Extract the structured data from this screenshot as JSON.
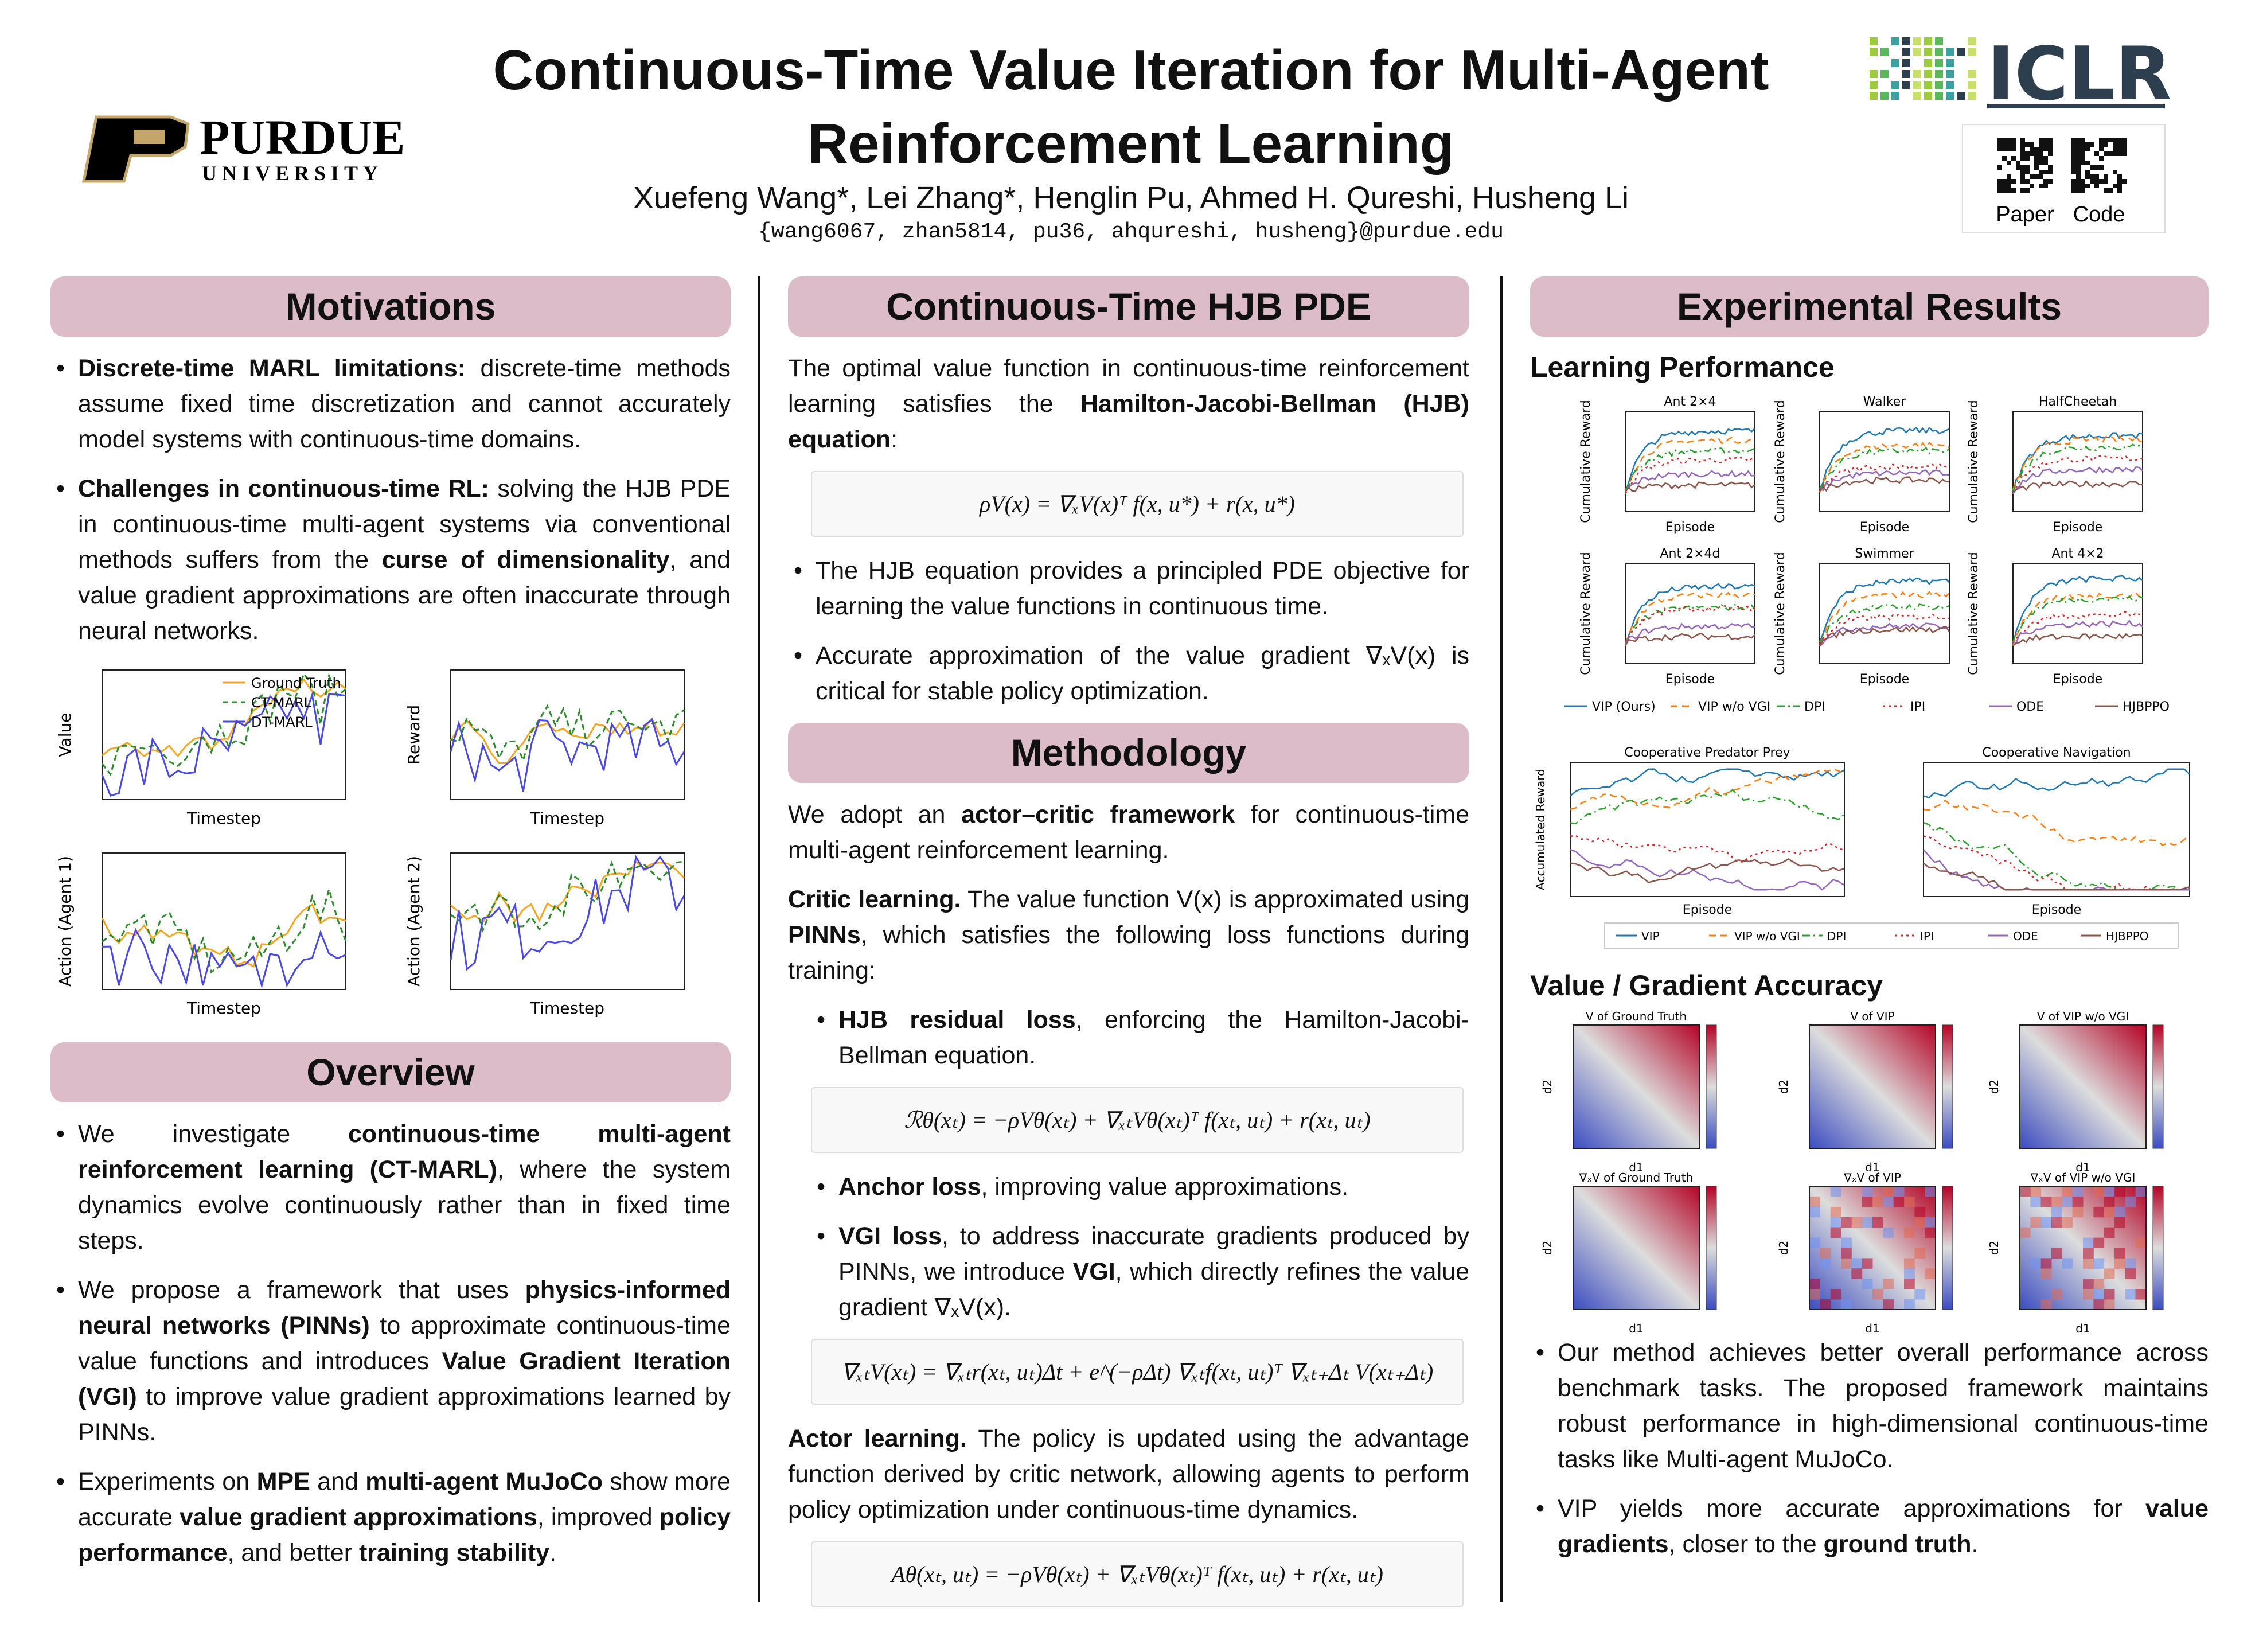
{
  "header": {
    "title_line1": "Continuous-Time Value Iteration for Multi-Agent",
    "title_line2": "Reinforcement Learning",
    "authors": "Xuefeng Wang*, Lei Zhang*, Henglin Pu, Ahmed H. Qureshi, Husheng Li",
    "emails": "{wang6067, zhan5814, pu36, ahqureshi, husheng}@purdue.edu",
    "purdue": "PURDUE",
    "purdue_sub": "UNIVERSITY",
    "iclr": "ICLR",
    "qr_labels": [
      "Paper",
      "Code"
    ]
  },
  "motivations": {
    "heading": "Motivations",
    "bullets": [
      [
        {
          "text": "Discrete-time MARL limitations:",
          "bold": true
        },
        " discrete-time methods assume fixed time discretization and cannot accurately model systems with continuous-time domains."
      ],
      [
        {
          "text": "Challenges in continuous-time RL:",
          "bold": true
        },
        " solving the HJB PDE in continuous-time multi-agent systems via conventional methods suffers from the ",
        {
          "text": "curse of dimensionality",
          "bold": true
        },
        ", and value gradient approximations are often inaccurate through neural networks."
      ]
    ]
  },
  "motivation_figure": {
    "legend": [
      "Ground Truth",
      "CT-MARL",
      "DT-MARL"
    ],
    "colors": [
      "#f5a623",
      "#2e8b2e",
      "#4a4ae0"
    ],
    "x_label": "Timestep",
    "y_labels": [
      "Value",
      "Reward",
      "Action (Agent 1)",
      "Action (Agent 2)"
    ]
  },
  "overview": {
    "heading": "Overview",
    "bullets": [
      [
        "We investigate ",
        {
          "text": "continuous-time multi-agent reinforcement learning (CT-MARL)",
          "bold": true
        },
        ", where the system dynamics evolve continuously rather than in fixed time steps."
      ],
      [
        "We propose a framework that uses ",
        {
          "text": "physics-informed neural networks (PINNs)",
          "bold": true
        },
        " to approximate continuous-time value functions and introduces ",
        {
          "text": "Value Gradient Iteration (VGI)",
          "bold": true
        },
        " to improve value gradient approximations learned by PINNs."
      ],
      [
        "Experiments on ",
        {
          "text": "MPE",
          "bold": true
        },
        " and ",
        {
          "text": "multi-agent MuJoCo",
          "bold": true
        },
        " show more accurate ",
        {
          "text": "value gradient approximations",
          "bold": true
        },
        ", improved ",
        {
          "text": "policy performance",
          "bold": true
        },
        ", and better ",
        {
          "text": "training stability",
          "bold": true
        },
        "."
      ]
    ]
  },
  "hjb": {
    "heading": "Continuous-Time HJB PDE",
    "intro": [
      "The optimal value function in continuous-time reinforcement learning satisfies the ",
      {
        "text": "Hamilton-Jacobi-Bellman (HJB) equation",
        "bold": true
      },
      ":"
    ],
    "equation": "ρV(x) = ∇ₓV(x)ᵀ f(x, u*) + r(x, u*)",
    "bullets": [
      [
        "The HJB equation provides a principled PDE objective for learning the value functions in continuous time."
      ],
      [
        "Accurate approximation of the value gradient ∇ₓV(x) is critical for stable policy optimization."
      ]
    ]
  },
  "methodology": {
    "heading": "Methodology",
    "intro": [
      "We adopt an ",
      {
        "text": "actor–critic framework",
        "bold": true
      },
      " for continuous-time multi-agent reinforcement learning."
    ],
    "critic": [
      {
        "text": "Critic learning.",
        "bold": true
      },
      " The value function V(x) is approximated using ",
      {
        "text": "PINNs",
        "bold": true
      },
      ", which satisfies the following loss functions during training:"
    ],
    "losses": [
      {
        "runs": [
          {
            "text": "HJB residual loss",
            "bold": true
          },
          ", enforcing the Hamilton-Jacobi-Bellman equation."
        ],
        "equation": "ℛθ(xₜ) = −ρVθ(xₜ) + ∇ₓₜVθ(xₜ)ᵀ f(xₜ, uₜ) + r(xₜ, uₜ)"
      },
      {
        "runs": [
          {
            "text": "Anchor loss",
            "bold": true
          },
          ", improving value approximations."
        ]
      },
      {
        "runs": [
          {
            "text": "VGI loss",
            "bold": true
          },
          ", to address inaccurate gradients produced by PINNs, we introduce ",
          {
            "text": "VGI",
            "bold": true
          },
          ", which directly refines the value gradient ∇ₓV(x)."
        ],
        "equation": "∇ₓₜV(xₜ) = ∇ₓₜr(xₜ, uₜ)Δt + e^(−ρΔt) ∇ₓₜf(xₜ, uₜ)ᵀ ∇ₓₜ₊Δₜ V(xₜ₊Δₜ)"
      }
    ],
    "actor": [
      {
        "text": "Actor learning.",
        "bold": true
      },
      " The policy is updated using the advantage function derived by critic network, allowing agents to perform policy optimization under continuous-time dynamics."
    ],
    "actor_equation": "Aθ(xₜ, uₜ) = −ρVθ(xₜ) + ∇ₓₜVθ(xₜ)ᵀ f(xₜ, uₜ) + r(xₜ, uₜ)"
  },
  "results": {
    "heading": "Experimental Results",
    "learning_heading": "Learning Performance",
    "learning_figure": {
      "titles": [
        "Ant 2×4",
        "Walker",
        "HalfCheetah",
        "Ant 2×4d",
        "Swimmer",
        "Ant 4×2"
      ],
      "y_label": "Cumulative Reward",
      "x_label": "Episode",
      "legend": [
        "VIP (Ours)",
        "VIP w/o VGI",
        "DPI",
        "IPI",
        "ODE",
        "HJBPPO"
      ],
      "colors": [
        "#1f77b4",
        "#ff7f0e",
        "#2ca02c",
        "#d62728",
        "#9467bd",
        "#8c564b"
      ]
    },
    "mpe_figure": {
      "titles": [
        "Cooperative Predator Prey",
        "Cooperative Navigation"
      ],
      "y_label": "Accumulated Reward",
      "x_label": "Episode",
      "legend": [
        "VIP",
        "VIP w/o VGI",
        "DPI",
        "IPI",
        "ODE",
        "HJBPPO"
      ]
    },
    "accuracy_heading": "Value / Gradient Accuracy",
    "heatmaps": {
      "titles": [
        "V of Ground Truth",
        "V of VIP",
        "V of VIP w/o VGI",
        "∇ₓV of Ground Truth",
        "∇ₓV of VIP",
        "∇ₓV of VIP w/o VGI"
      ],
      "x_label": "d1",
      "y_label": "d2"
    },
    "bullets": [
      [
        "Our method achieves better overall performance across benchmark tasks.  The proposed framework maintains robust performance in high-dimensional continuous-time tasks like Multi-agent MuJoCo."
      ],
      [
        "VIP yields more accurate approximations for ",
        {
          "text": "value gradients",
          "bold": true
        },
        ", closer to the ",
        {
          "text": "ground truth",
          "bold": true
        },
        "."
      ]
    ]
  }
}
